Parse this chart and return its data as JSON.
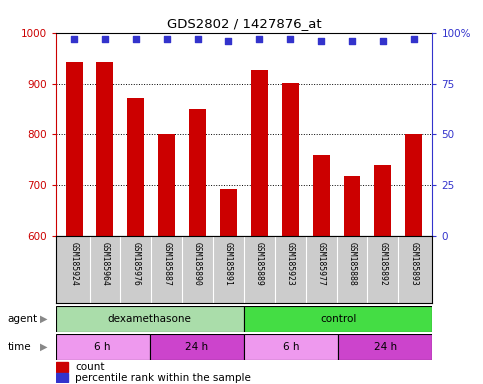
{
  "title": "GDS2802 / 1427876_at",
  "samples": [
    "GSM185924",
    "GSM185964",
    "GSM185976",
    "GSM185887",
    "GSM185890",
    "GSM185891",
    "GSM185889",
    "GSM185923",
    "GSM185977",
    "GSM185888",
    "GSM185892",
    "GSM185893"
  ],
  "bar_values": [
    943,
    942,
    872,
    800,
    849,
    692,
    926,
    902,
    759,
    718,
    740,
    800
  ],
  "percentile_values": [
    97,
    97,
    97,
    97,
    97,
    96,
    97,
    97,
    96,
    96,
    96,
    97
  ],
  "bar_color": "#cc0000",
  "dot_color": "#3333cc",
  "ylim_left": [
    600,
    1000
  ],
  "ylim_right": [
    0,
    100
  ],
  "yticks_left": [
    600,
    700,
    800,
    900,
    1000
  ],
  "yticks_right": [
    0,
    25,
    50,
    75,
    100
  ],
  "agent_labels": [
    {
      "text": "dexamethasone",
      "start": 0,
      "end": 6,
      "color": "#aaddaa"
    },
    {
      "text": "control",
      "start": 6,
      "end": 12,
      "color": "#44dd44"
    }
  ],
  "time_labels": [
    {
      "text": "6 h",
      "start": 0,
      "end": 3,
      "color": "#ee99ee"
    },
    {
      "text": "24 h",
      "start": 3,
      "end": 6,
      "color": "#cc44cc"
    },
    {
      "text": "6 h",
      "start": 6,
      "end": 9,
      "color": "#ee99ee"
    },
    {
      "text": "24 h",
      "start": 9,
      "end": 12,
      "color": "#cc44cc"
    }
  ],
  "left_axis_color": "#cc0000",
  "right_axis_color": "#3333cc",
  "grid_color": "#000000",
  "bg_color": "#ffffff",
  "sample_bg_color": "#cccccc",
  "legend_count_color": "#cc0000",
  "legend_dot_color": "#3333cc"
}
